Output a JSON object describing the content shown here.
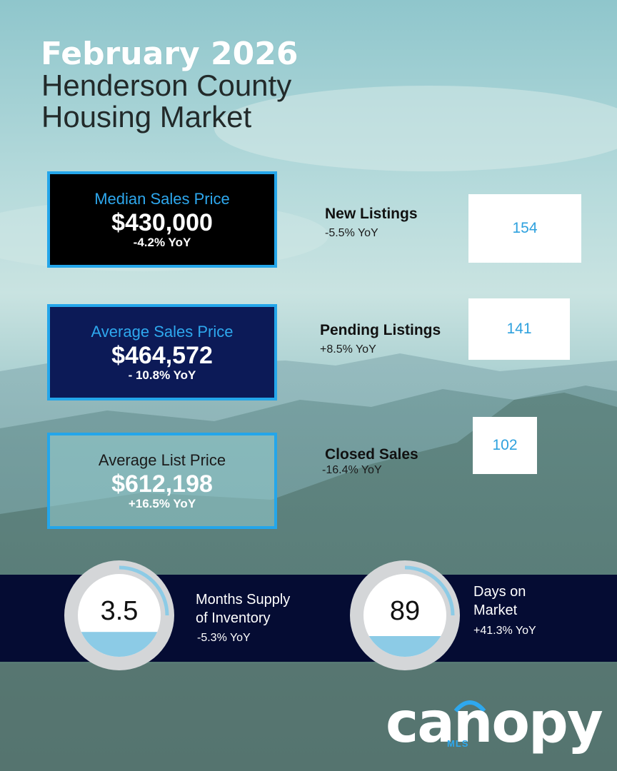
{
  "header": {
    "line1": "February 2026",
    "line2": "Henderson County",
    "line3": "Housing Market"
  },
  "kpis": [
    {
      "label": "Median Sales Price",
      "value": "$430,000",
      "change": "-4.2% YoY"
    },
    {
      "label": "Average Sales Price",
      "value": "$464,572",
      "change": "- 10.8% YoY"
    },
    {
      "label": "Average List Price",
      "value": "$612,198",
      "change": "+16.5% YoY"
    }
  ],
  "stats": [
    {
      "label": "New Listings",
      "change": "-5.5% YoY",
      "value": "154"
    },
    {
      "label": "Pending Listings",
      "change": "+8.5% YoY",
      "value": "141"
    },
    {
      "label": "Closed Sales",
      "change": "-16.4% YoY",
      "value": "102"
    }
  ],
  "gauges": [
    {
      "value": "3.5",
      "label_line1": "Months Supply",
      "label_line2": "of Inventory",
      "change": "-5.3% YoY",
      "fill_fraction": 0.3
    },
    {
      "value": "89",
      "label_line1": "Days on",
      "label_line2": "Market",
      "change": "+41.3% YoY",
      "fill_fraction": 0.25
    }
  ],
  "logo": {
    "word": "canopy",
    "sub": "MLS"
  },
  "colors": {
    "accent_blue": "#24a6ea",
    "navy": "#0c1a57",
    "band": "#050c33",
    "gauge_fill": "#8ccbe6"
  }
}
